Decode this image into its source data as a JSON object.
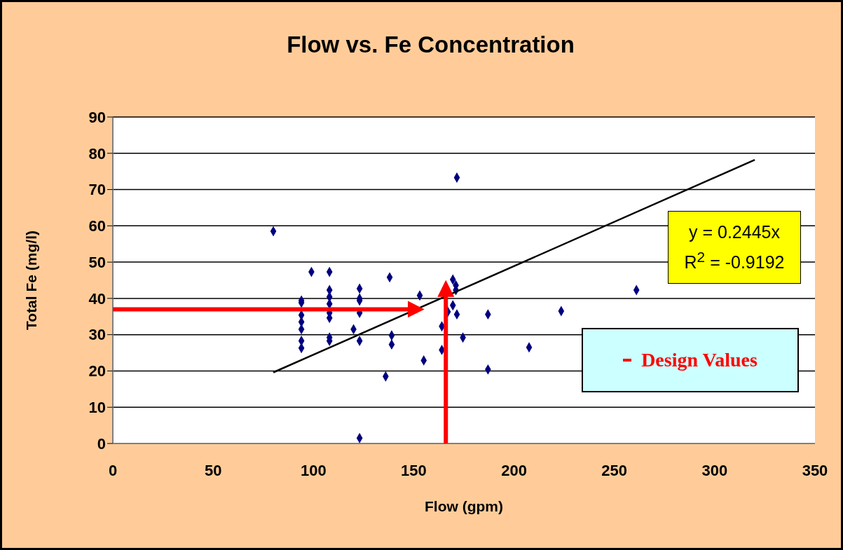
{
  "chart_data": {
    "type": "scatter",
    "title": "Flow vs. Fe Concentration",
    "xlabel": "Flow (gpm)",
    "ylabel": "Total Fe (mg/l)",
    "annotations": [
      "y = 0.2445x",
      "R$^{2}$ = -0.9192"
    ],
    "xlim": [
      0,
      350
    ],
    "xticks": [
      0,
      50,
      100,
      150,
      200,
      250,
      300,
      350
    ],
    "ylim": [
      0,
      90
    ],
    "yticks": [
      0,
      10,
      20,
      30,
      40,
      50,
      60,
      70,
      80,
      90
    ],
    "grid": "y",
    "legend": "right",
    "marker": "diamond",
    "series": [
      {
        "color": "#000080",
        "x": [
          80,
          99,
          108,
          94,
          94,
          94,
          94,
          94,
          94,
          94,
          108,
          108,
          108,
          108,
          108,
          108,
          108,
          123,
          123,
          123,
          123,
          123,
          123,
          120,
          138,
          139,
          139,
          136,
          153,
          155,
          164,
          164,
          169.5,
          171,
          171,
          169.5,
          167,
          171.5,
          174.5,
          171.5,
          187,
          187,
          207.5,
          223.5,
          261
        ],
        "values": [
          58.5,
          47.3,
          47.3,
          39.4,
          38.8,
          35.4,
          33.5,
          31.5,
          28.3,
          26.3,
          42.3,
          40.4,
          38.5,
          36,
          34.6,
          29.2,
          28.3,
          42.7,
          40,
          39.4,
          36,
          28.3,
          1.5,
          31.5,
          45.8,
          29.8,
          27.3,
          18.5,
          40.8,
          22.9,
          32.3,
          25.8,
          45.2,
          43.6,
          42.3,
          38.1,
          36.3,
          35.6,
          29.2,
          73.3,
          35.6,
          20.4,
          26.5,
          36.5,
          42.3
        ]
      },
      {
        "type": "line",
        "marker": "none",
        "color": "#000000",
        "x": [
          80,
          320
        ],
        "values": [
          19.6,
          78.2
        ]
      },
      {
        "type": "line",
        "marker": "none",
        "name": "Design Values",
        "color": "#ff0000",
        "x": [
          0,
          148
        ],
        "values": [
          37,
          37
        ]
      },
      {
        "type": "line",
        "marker": "none",
        "color": "#ff0000",
        "x": [
          166,
          166
        ],
        "values": [
          0,
          41
        ]
      }
    ]
  }
}
